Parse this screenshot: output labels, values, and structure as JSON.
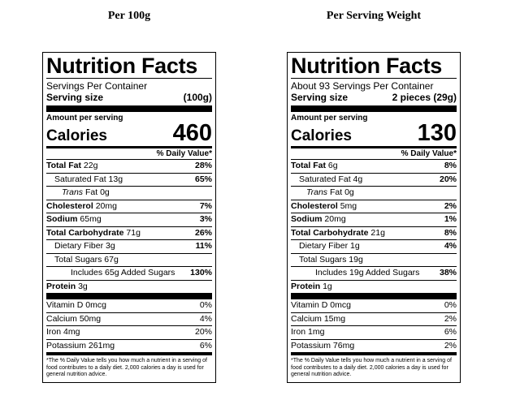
{
  "columns": [
    {
      "heading": "Per 100g",
      "title": "Nutrition Facts",
      "servings": "Servings Per Container",
      "serving_size_label": "Serving size",
      "serving_size_value": "(100g)",
      "amount_per_serving": "Amount per serving",
      "calories_label": "Calories",
      "calories_value": "460",
      "dv_header": "% Daily Value*",
      "total_fat_label": "Total Fat",
      "total_fat_amt": "22g",
      "total_fat_dv": "28%",
      "sat_fat_label": "Saturated Fat 13g",
      "sat_fat_dv": "65%",
      "trans_label": "Trans",
      "trans_rest": "Fat 0g",
      "chol_label": "Cholesterol",
      "chol_amt": "20mg",
      "chol_dv": "7%",
      "sodium_label": "Sodium",
      "sodium_amt": "65mg",
      "sodium_dv": "3%",
      "carb_label": "Total Carbohydrate",
      "carb_amt": "71g",
      "carb_dv": "26%",
      "fiber_label": "Dietary Fiber 3g",
      "fiber_dv": "11%",
      "sugars_label": "Total Sugars 67g",
      "added_label": "Includes 65g Added Sugars",
      "added_dv": "130%",
      "protein_label": "Protein",
      "protein_amt": "3g",
      "vitd_label": "Vitamin D 0mcg",
      "vitd_dv": "0%",
      "calcium_label": "Calcium 50mg",
      "calcium_dv": "4%",
      "iron_label": "Iron 4mg",
      "iron_dv": "20%",
      "potassium_label": "Potassium 261mg",
      "potassium_dv": "6%",
      "footnote": "*The % Daily Value tells you how much a nutrient in a serving of food contributes to a daily diet. 2,000 calories a day is used for general nutrition advice."
    },
    {
      "heading": "Per Serving Weight",
      "title": "Nutrition Facts",
      "servings": "About 93 Servings Per Container",
      "serving_size_label": "Serving size",
      "serving_size_value": "2 pieces (29g)",
      "amount_per_serving": "Amount per serving",
      "calories_label": "Calories",
      "calories_value": "130",
      "dv_header": "% Daily Value*",
      "total_fat_label": "Total Fat",
      "total_fat_amt": "6g",
      "total_fat_dv": "8%",
      "sat_fat_label": "Saturated Fat 4g",
      "sat_fat_dv": "20%",
      "trans_label": "Trans",
      "trans_rest": "Fat 0g",
      "chol_label": "Cholesterol",
      "chol_amt": "5mg",
      "chol_dv": "2%",
      "sodium_label": "Sodium",
      "sodium_amt": "20mg",
      "sodium_dv": "1%",
      "carb_label": "Total Carbohydrate",
      "carb_amt": "21g",
      "carb_dv": "8%",
      "fiber_label": "Dietary Fiber 1g",
      "fiber_dv": "4%",
      "sugars_label": "Total Sugars 19g",
      "added_label": "Includes 19g Added Sugars",
      "added_dv": "38%",
      "protein_label": "Protein",
      "protein_amt": "1g",
      "vitd_label": "Vitamin D 0mcg",
      "vitd_dv": "0%",
      "calcium_label": "Calcium 15mg",
      "calcium_dv": "2%",
      "iron_label": "Iron 1mg",
      "iron_dv": "6%",
      "potassium_label": "Potassium 76mg",
      "potassium_dv": "2%",
      "footnote": "*The % Daily Value tells you how much a nutrient in a serving of food contributes to a daily diet. 2,000 calories a day is used for general nutrition advice."
    }
  ]
}
